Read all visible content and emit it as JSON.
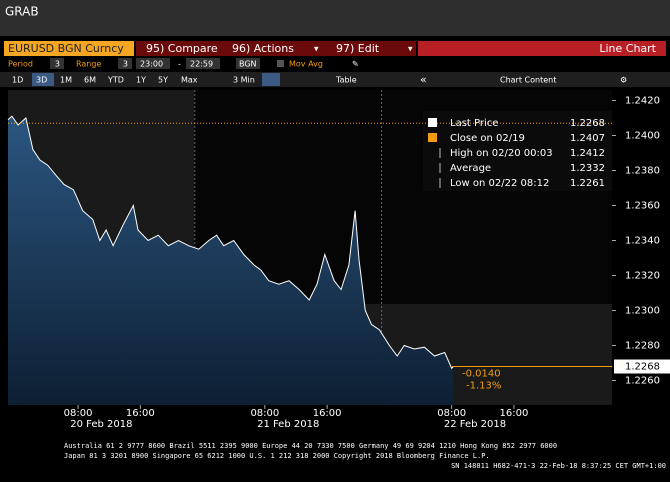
{
  "window_title": "GRAB",
  "toolbar": {
    "security": "EURUSD BGN Curncy",
    "buttons": [
      "95) Compare",
      "96) Actions",
      "97) Edit"
    ],
    "view": "Line Chart"
  },
  "settings": {
    "period_label": "Period",
    "period": "3",
    "range_label": "Range",
    "range": "3",
    "start": "23:00",
    "end": "22:59",
    "market": "BGN",
    "mov_avg": "Mov Avg"
  },
  "ranges": [
    "1D",
    "3D",
    "1M",
    "6M",
    "YTD",
    "1Y",
    "5Y",
    "Max"
  ],
  "interval": "3 Min",
  "table": "Table",
  "chart_content": "Chart Content",
  "chart_data": {
    "type": "line",
    "series": [
      {
        "color": "#ffffff",
        "x": [
          -1,
          -0.5,
          0.3,
          1.3,
          2.2,
          3.1,
          4.1,
          5.2,
          6.2,
          7.4,
          8.6,
          9.9,
          10.8,
          11.6,
          12.5,
          13.8,
          15.1,
          15.7,
          17.0,
          18.3,
          19.6,
          20.9,
          22.2,
          23.5,
          24.8,
          25.8,
          26.7,
          28.0,
          29.3,
          30.6,
          31.5,
          32.5,
          33.8,
          35.1,
          36.4,
          37.7,
          38.7,
          39.7,
          40.9,
          41.8,
          42.8,
          43.6,
          44.1,
          44.9,
          45.7,
          46.7,
          48.0,
          49.0,
          49.9,
          51.2,
          52.5,
          53.8,
          55.1,
          56.0,
          56.2
        ],
        "values": [
          1.2409,
          1.2411,
          1.2406,
          1.241,
          1.2392,
          1.2386,
          1.2383,
          1.2377,
          1.2372,
          1.2369,
          1.2357,
          1.2352,
          1.234,
          1.2346,
          1.2337,
          1.2349,
          1.236,
          1.2346,
          1.234,
          1.2343,
          1.2337,
          1.234,
          1.2337,
          1.2335,
          1.234,
          1.2343,
          1.2337,
          1.234,
          1.2332,
          1.2326,
          1.2323,
          1.2317,
          1.2315,
          1.2317,
          1.2312,
          1.2306,
          1.2315,
          1.2332,
          1.2317,
          1.2312,
          1.2326,
          1.2357,
          1.2329,
          1.23,
          1.2292,
          1.2289,
          1.228,
          1.2274,
          1.228,
          1.2278,
          1.2279,
          1.2274,
          1.2276,
          1.2267,
          1.2268
        ]
      }
    ],
    "xlim": [
      -1,
      76.6
    ],
    "xticks": [
      {
        "value": 8,
        "label": "08:00"
      },
      {
        "value": 16,
        "label": "16:00"
      },
      {
        "value": 32,
        "label": "08:00"
      },
      {
        "value": 40,
        "label": "16:00"
      },
      {
        "value": 56,
        "label": "08:00"
      },
      {
        "value": 64,
        "label": "16:00"
      }
    ],
    "date_labels": [
      {
        "value": 11,
        "label": "20 Feb 2018"
      },
      {
        "value": 35,
        "label": "21 Feb 2018"
      },
      {
        "value": 59,
        "label": "22 Feb 2018"
      }
    ],
    "session_breaks": [
      23,
      47
    ],
    "ylim": [
      1.2246,
      1.2426
    ],
    "yticks": [
      {
        "value": 1.226,
        "label": "1.2260"
      },
      {
        "value": 1.228,
        "label": "1.2280"
      },
      {
        "value": 1.23,
        "label": "1.2300"
      },
      {
        "value": 1.232,
        "label": "1.2320"
      },
      {
        "value": 1.234,
        "label": "1.2340"
      },
      {
        "value": 1.236,
        "label": "1.2360"
      },
      {
        "value": 1.238,
        "label": "1.2380"
      },
      {
        "value": 1.24,
        "label": "1.2400"
      },
      {
        "value": 1.242,
        "label": "1.2420"
      }
    ],
    "legend": [
      {
        "label": "Last Price",
        "value": 1.2268,
        "color": "#ffffff"
      },
      {
        "label": "Close on 02/19",
        "value": 1.2407,
        "color": "#f39c12"
      },
      {
        "label": "High on 02/20 00:03",
        "value": 1.2412,
        "color": "#bbbbbb"
      },
      {
        "label": "Average",
        "value": 1.2332,
        "color": "#bbbbbb"
      },
      {
        "label": "Low on 02/22 08:12",
        "value": 1.2261,
        "color": "#bbbbbb"
      }
    ],
    "change": "-0.0140",
    "change_pct": "-1.13%"
  },
  "footer": [
    "Australia 61 2 9777 8600 Brazil 5511 2395 9000 Europe 44 20 7330 7500 Germany 49 69 9204 1210 Hong Kong 852 2977 6000",
    "Japan 81 3 3201 8900        Singapore 65 6212 1000        U.S. 1 212 318 2000        Copyright 2018 Bloomberg Finance L.P.",
    "SN 148811 H682-471-3 22-Feb-18  8:37:25 CET  GMT+1:00"
  ]
}
